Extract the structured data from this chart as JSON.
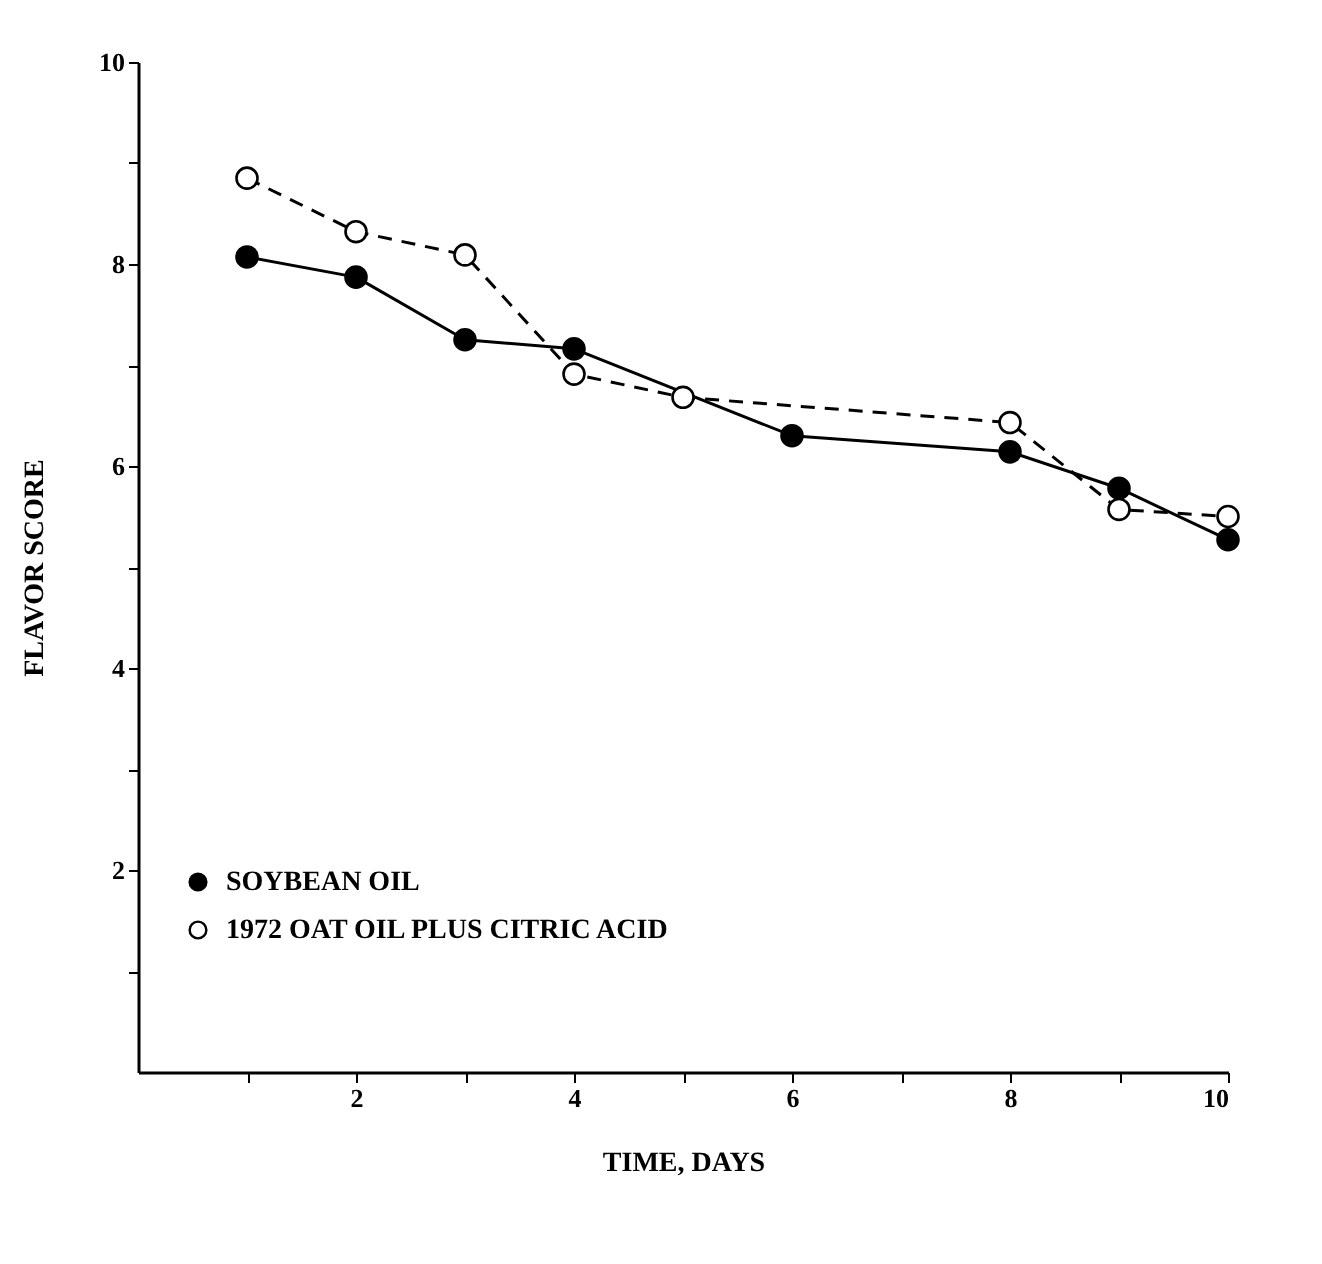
{
  "chart_data": {
    "type": "line",
    "xlabel": "TIME, DAYS",
    "ylabel": "FLAVOR SCORE",
    "xlim": [
      0,
      10
    ],
    "ylim": [
      0,
      10
    ],
    "xticks": [
      {
        "value": 1,
        "label": null
      },
      2,
      {
        "value": 3,
        "label": null
      },
      4,
      {
        "value": 5,
        "label": null
      },
      6,
      {
        "value": 7,
        "label": null
      },
      8,
      {
        "value": 9,
        "label": null
      },
      10
    ],
    "yticks": [
      {
        "value": 1,
        "label": null
      },
      2,
      {
        "value": 3,
        "label": null
      },
      4,
      {
        "value": 5,
        "label": null
      },
      6,
      {
        "value": 7,
        "label": null
      },
      8,
      {
        "value": 9,
        "label": null
      },
      10
    ],
    "grid": false,
    "legend": "bottom left",
    "marker": "circle",
    "series": [
      {
        "name": "SOYBEAN OIL",
        "color": "#000000",
        "line_style": "solid",
        "x": [
          1,
          2,
          3,
          4,
          6,
          8,
          9,
          10
        ],
        "values": [
          8.07,
          7.87,
          7.25,
          7.16,
          6.3,
          6.14,
          5.78,
          5.27
        ]
      },
      {
        "name": "1972 OAT OIL PLUS CITRIC ACID",
        "color": "#000000",
        "line_style": "dashed",
        "x": [
          1,
          2,
          3,
          4,
          5,
          8,
          9,
          10
        ],
        "values": [
          8.85,
          8.32,
          8.09,
          6.91,
          6.68,
          6.43,
          5.57,
          5.5
        ]
      }
    ]
  }
}
